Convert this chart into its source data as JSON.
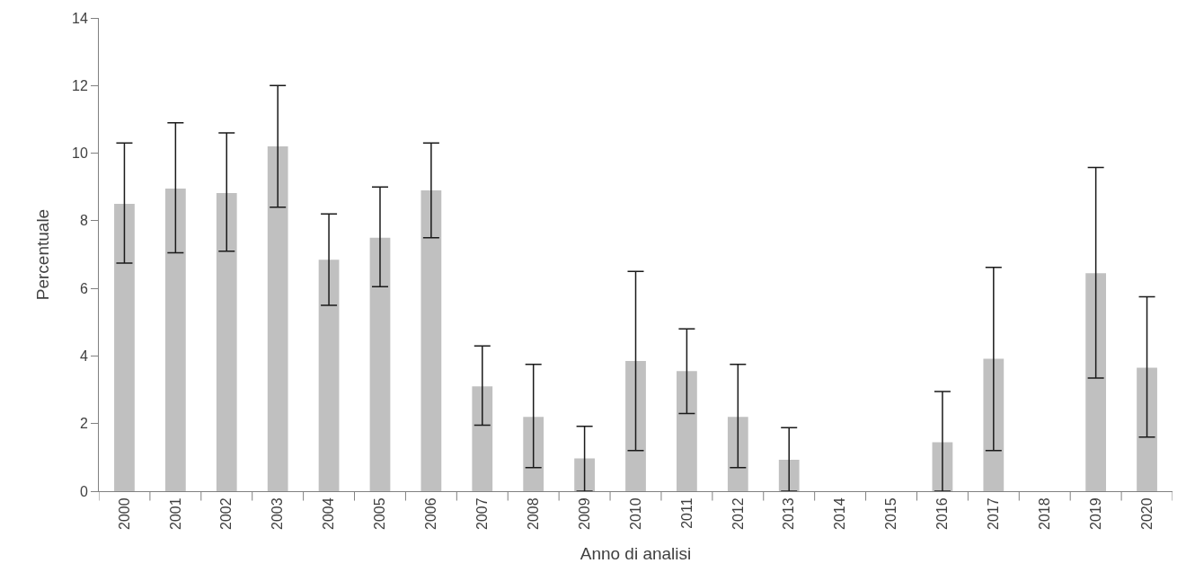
{
  "chart_data": {
    "type": "bar",
    "xlabel": "Anno di analisi",
    "ylabel": "Percentuale",
    "categories": [
      "2000",
      "2001",
      "2002",
      "2003",
      "2004",
      "2005",
      "2006",
      "2007",
      "2008",
      "2009",
      "2010",
      "2011",
      "2012",
      "2013",
      "2014",
      "2015",
      "2016",
      "2017",
      "2018",
      "2019",
      "2020"
    ],
    "values": [
      8.5,
      8.95,
      8.82,
      10.2,
      6.85,
      7.5,
      8.9,
      3.1,
      2.2,
      0.97,
      3.85,
      3.55,
      2.2,
      0.93,
      null,
      null,
      1.45,
      3.92,
      null,
      6.45,
      3.65
    ],
    "errors": [
      [
        6.75,
        10.3
      ],
      [
        7.05,
        10.9
      ],
      [
        7.1,
        10.6
      ],
      [
        8.4,
        12.0
      ],
      [
        5.5,
        8.2
      ],
      [
        6.05,
        9.0
      ],
      [
        7.5,
        10.3
      ],
      [
        1.95,
        4.3
      ],
      [
        0.7,
        3.75
      ],
      [
        0,
        1.92
      ],
      [
        1.2,
        6.5
      ],
      [
        2.3,
        4.8
      ],
      [
        0.7,
        3.75
      ],
      [
        0,
        1.88
      ],
      null,
      null,
      [
        0,
        2.95
      ],
      [
        1.2,
        6.62
      ],
      null,
      [
        3.35,
        9.58
      ],
      [
        1.6,
        5.75
      ]
    ],
    "color": "#c0c0c0",
    "ylim": [
      0,
      14
    ],
    "yticks": [
      0,
      2,
      4,
      6,
      8,
      10,
      12,
      14
    ],
    "legend": false
  }
}
